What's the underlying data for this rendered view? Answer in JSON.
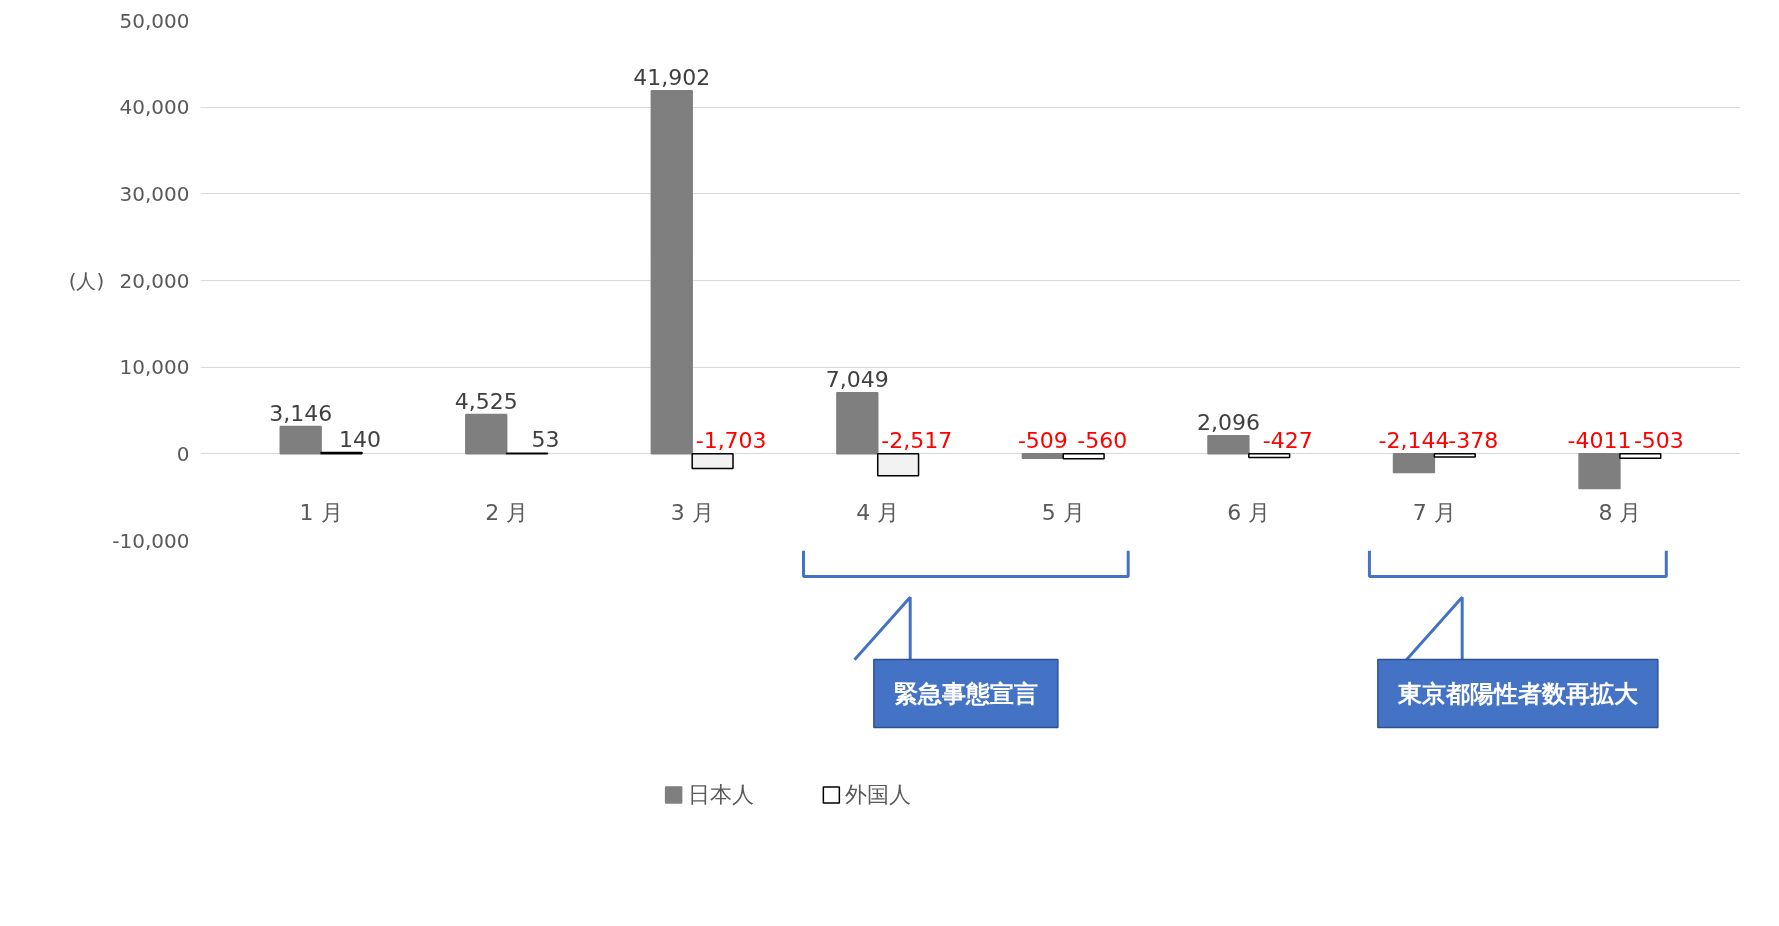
{
  "chart_data": {
    "type": "bar",
    "ylabel": "(人)",
    "categories": [
      "1 月",
      "2 月",
      "3 月",
      "4 月",
      "5 月",
      "6 月",
      "7 月",
      "8 月"
    ],
    "series": [
      {
        "name": "日本人",
        "color": "#7f7f7f",
        "values": [
          3146,
          4525,
          41902,
          7049,
          -509,
          2096,
          -2144,
          -4011
        ],
        "value_labels": [
          "3,146",
          "4,525",
          "41,902",
          "7,049",
          "-509",
          "2,096",
          "-2,144",
          "-4011"
        ]
      },
      {
        "name": "外国人",
        "color": "#000000",
        "colors": [
          "#ffffff",
          "#ffffff",
          "#f2f2f2",
          "#f2f2f2",
          "#ffffff",
          "#ffffff",
          "#ffffff",
          "#ffffff"
        ],
        "values": [
          140,
          53,
          -1703,
          -2517,
          -560,
          -427,
          -378,
          -503
        ],
        "value_labels": [
          "140",
          "53",
          "-1,703",
          "-2,517",
          "-560",
          "-427",
          "-378",
          "-503"
        ]
      }
    ],
    "ylim": [
      -10000,
      50000
    ],
    "yticks": [
      {
        "value": -10000,
        "label": "-10,000"
      },
      {
        "value": 0,
        "label": "0"
      },
      {
        "value": 10000,
        "label": "10,000"
      },
      {
        "value": 20000,
        "label": "20,000"
      },
      {
        "value": 30000,
        "label": "30,000"
      },
      {
        "value": 40000,
        "label": "40,000"
      },
      {
        "value": 50000,
        "label": "50,000"
      }
    ],
    "annotations": [
      "緊急事態宣言",
      "東京都陽性者数再拡大"
    ],
    "grid": "y",
    "legend": "bottom"
  }
}
